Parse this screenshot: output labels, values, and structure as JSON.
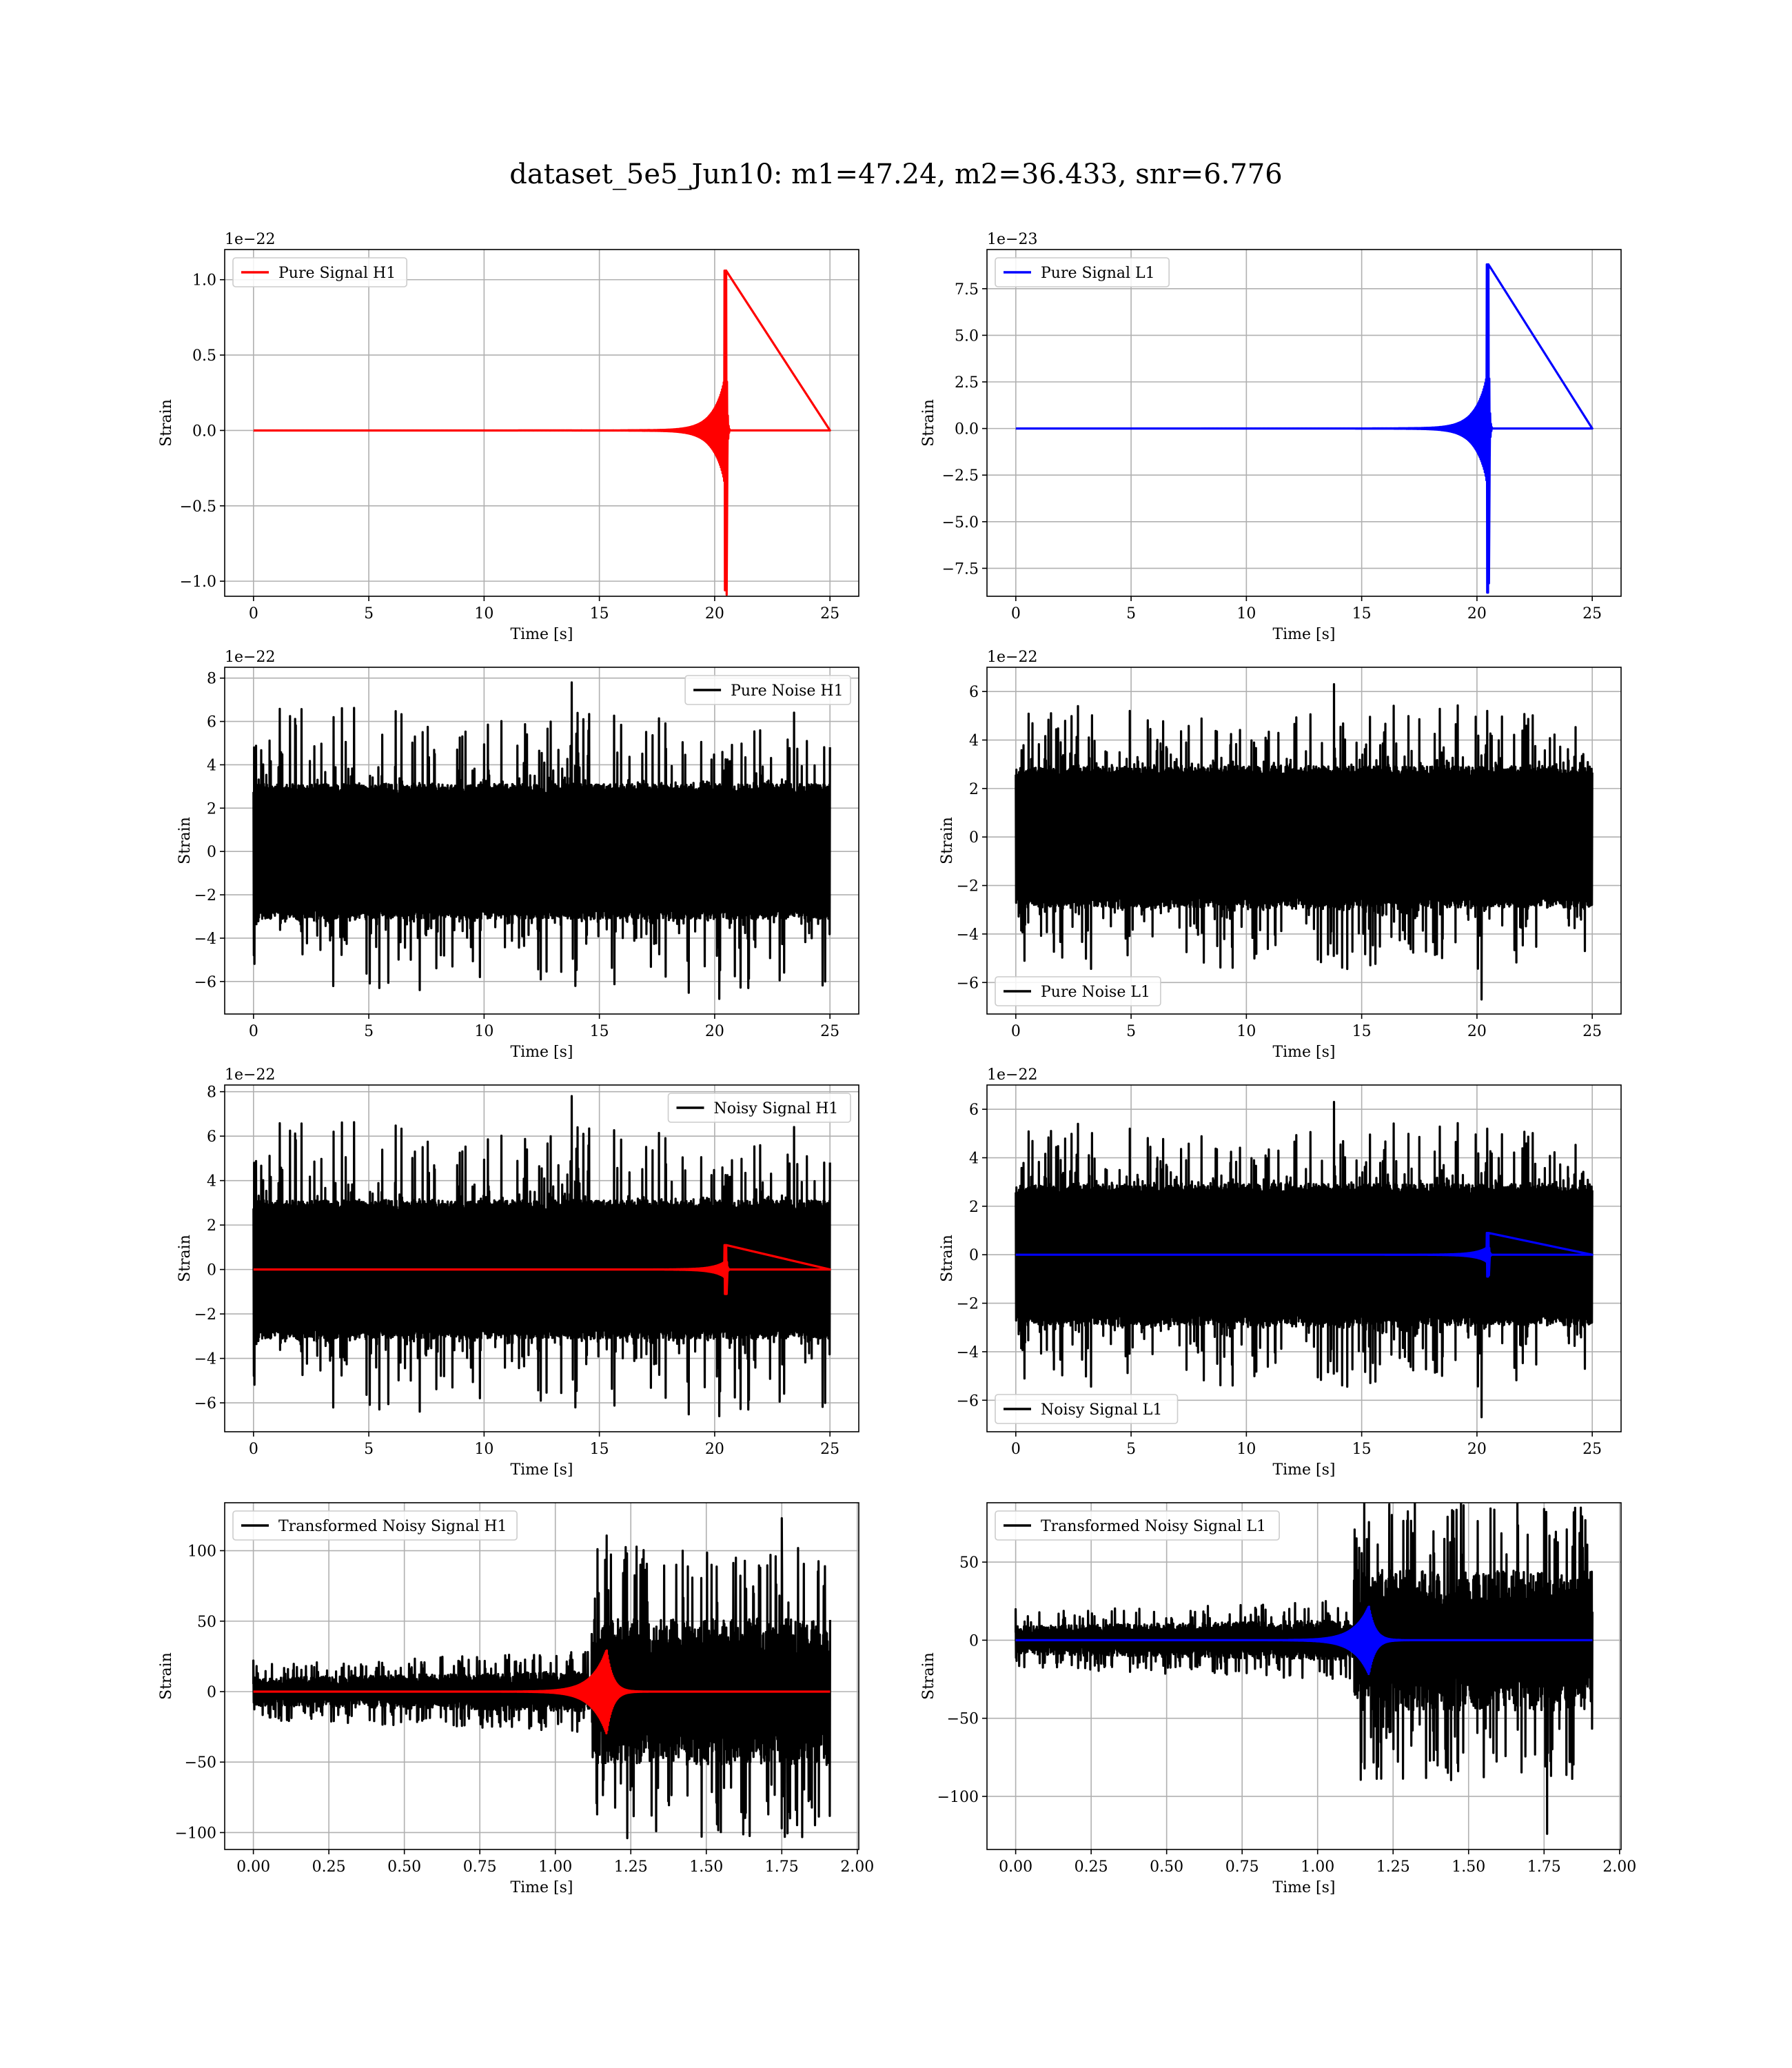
{
  "figure": {
    "title": "dataset_5e5_Jun10: m1=47.24, m2=36.433, snr=6.776"
  },
  "colors": {
    "h1": "#ff0000",
    "l1": "#0000ff",
    "noise": "#000000",
    "grid": "#b0b0b0"
  },
  "chart_data": [
    {
      "id": "pure-signal-h1",
      "type": "line",
      "xlabel": "Time [s]",
      "ylabel": "Strain",
      "offset_text": "1e−22",
      "xlim": [
        -1.25,
        26.25
      ],
      "ylim": [
        -1.1,
        1.2
      ],
      "xticks": [
        0,
        5,
        10,
        15,
        20,
        25
      ],
      "xtick_labels": [
        "0",
        "5",
        "10",
        "15",
        "20",
        "25"
      ],
      "yticks": [
        -1.0,
        -0.5,
        0.0,
        0.5,
        1.0
      ],
      "ytick_labels": [
        "−1.0",
        "−0.5",
        "0.0",
        "0.5",
        "1.0"
      ],
      "legend": {
        "loc": "upper-left",
        "label": "Pure Signal H1",
        "color": "#ff0000"
      },
      "series": [
        {
          "name": "Pure Signal H1",
          "kind": "chirp",
          "color": "#ff0000",
          "x_start": 0,
          "x_end": 25,
          "merger": 20.5,
          "peak_pos": 1.06,
          "peak_neg": -1.09,
          "base_amp": 0.35
        }
      ]
    },
    {
      "id": "pure-signal-l1",
      "type": "line",
      "xlabel": "Time [s]",
      "ylabel": "Strain",
      "offset_text": "1e−23",
      "xlim": [
        -1.25,
        26.25
      ],
      "ylim": [
        -9.0,
        9.6
      ],
      "xticks": [
        0,
        5,
        10,
        15,
        20,
        25
      ],
      "xtick_labels": [
        "0",
        "5",
        "10",
        "15",
        "20",
        "25"
      ],
      "yticks": [
        -7.5,
        -5.0,
        -2.5,
        0.0,
        2.5,
        5.0,
        7.5
      ],
      "ytick_labels": [
        "−7.5",
        "−5.0",
        "−2.5",
        "0.0",
        "2.5",
        "5.0",
        "7.5"
      ],
      "legend": {
        "loc": "upper-left",
        "label": "Pure Signal L1",
        "color": "#0000ff"
      },
      "series": [
        {
          "name": "Pure Signal L1",
          "kind": "chirp",
          "color": "#0000ff",
          "x_start": 0,
          "x_end": 25,
          "merger": 20.5,
          "peak_pos": 8.8,
          "peak_neg": -8.3,
          "base_amp": 2.9
        }
      ]
    },
    {
      "id": "pure-noise-h1",
      "type": "line",
      "xlabel": "Time [s]",
      "ylabel": "Strain",
      "offset_text": "1e−22",
      "xlim": [
        -1.25,
        26.25
      ],
      "ylim": [
        -7.5,
        8.5
      ],
      "xticks": [
        0,
        5,
        10,
        15,
        20,
        25
      ],
      "xtick_labels": [
        "0",
        "5",
        "10",
        "15",
        "20",
        "25"
      ],
      "yticks": [
        -6,
        -4,
        -2,
        0,
        2,
        4,
        6,
        8
      ],
      "ytick_labels": [
        "−6",
        "−4",
        "−2",
        "0",
        "2",
        "4",
        "6",
        "8"
      ],
      "legend": {
        "loc": "upper-right",
        "label": "Pure Noise H1",
        "color": "#000000"
      },
      "series": [
        {
          "name": "Pure Noise H1",
          "kind": "noise",
          "color": "#000000",
          "x_start": 0,
          "x_end": 25,
          "core": 3.1,
          "max": 7.8,
          "min": -6.8,
          "seed": 11
        }
      ]
    },
    {
      "id": "pure-noise-l1",
      "type": "line",
      "xlabel": "Time [s]",
      "ylabel": "Strain",
      "offset_text": "1e−22",
      "xlim": [
        -1.25,
        26.25
      ],
      "ylim": [
        -7.3,
        7.0
      ],
      "xticks": [
        0,
        5,
        10,
        15,
        20,
        25
      ],
      "xtick_labels": [
        "0",
        "5",
        "10",
        "15",
        "20",
        "25"
      ],
      "yticks": [
        -6,
        -4,
        -2,
        0,
        2,
        4,
        6
      ],
      "ytick_labels": [
        "−6",
        "−4",
        "−2",
        "0",
        "2",
        "4",
        "6"
      ],
      "legend": {
        "loc": "lower-left",
        "label": "Pure Noise L1",
        "color": "#000000"
      },
      "series": [
        {
          "name": "Pure Noise L1",
          "kind": "noise",
          "color": "#000000",
          "x_start": 0,
          "x_end": 25,
          "core": 2.9,
          "max": 6.3,
          "min": -6.7,
          "seed": 23
        }
      ]
    },
    {
      "id": "noisy-signal-h1",
      "type": "line",
      "xlabel": "Time [s]",
      "ylabel": "Strain",
      "offset_text": "1e−22",
      "xlim": [
        -1.25,
        26.25
      ],
      "ylim": [
        -7.3,
        8.3
      ],
      "xticks": [
        0,
        5,
        10,
        15,
        20,
        25
      ],
      "xtick_labels": [
        "0",
        "5",
        "10",
        "15",
        "20",
        "25"
      ],
      "yticks": [
        -6,
        -4,
        -2,
        0,
        2,
        4,
        6,
        8
      ],
      "ytick_labels": [
        "−6",
        "−4",
        "−2",
        "0",
        "2",
        "4",
        "6",
        "8"
      ],
      "legend": {
        "loc": "upper-right",
        "label": "Noisy Signal H1",
        "color": "#000000"
      },
      "series": [
        {
          "name": "Noisy Signal H1",
          "kind": "noise",
          "color": "#000000",
          "x_start": 0,
          "x_end": 25,
          "core": 3.1,
          "max": 7.8,
          "min": -6.6,
          "seed": 11
        },
        {
          "name": "",
          "kind": "chirp",
          "color": "#ff0000",
          "x_start": 0,
          "x_end": 25,
          "merger": 20.5,
          "peak_pos": 1.1,
          "peak_neg": -1.1,
          "base_amp": 0.35
        }
      ]
    },
    {
      "id": "noisy-signal-l1",
      "type": "line",
      "xlabel": "Time [s]",
      "ylabel": "Strain",
      "offset_text": "1e−22",
      "xlim": [
        -1.25,
        26.25
      ],
      "ylim": [
        -7.3,
        7.0
      ],
      "xticks": [
        0,
        5,
        10,
        15,
        20,
        25
      ],
      "xtick_labels": [
        "0",
        "5",
        "10",
        "15",
        "20",
        "25"
      ],
      "yticks": [
        -6,
        -4,
        -2,
        0,
        2,
        4,
        6
      ],
      "ytick_labels": [
        "−6",
        "−4",
        "−2",
        "0",
        "2",
        "4",
        "6"
      ],
      "legend": {
        "loc": "lower-left",
        "label": "Noisy Signal L1",
        "color": "#000000"
      },
      "series": [
        {
          "name": "Noisy Signal L1",
          "kind": "noise",
          "color": "#000000",
          "x_start": 0,
          "x_end": 25,
          "core": 2.9,
          "max": 6.3,
          "min": -6.7,
          "seed": 23
        },
        {
          "name": "",
          "kind": "chirp",
          "color": "#0000ff",
          "x_start": 0,
          "x_end": 25,
          "merger": 20.5,
          "peak_pos": 0.9,
          "peak_neg": -0.85,
          "base_amp": 0.3
        }
      ]
    },
    {
      "id": "transformed-h1",
      "type": "line",
      "xlabel": "Time [s]",
      "ylabel": "Strain",
      "offset_text": "",
      "xlim": [
        -0.095,
        2.005
      ],
      "ylim": [
        -112,
        134
      ],
      "xticks": [
        0,
        0.25,
        0.5,
        0.75,
        1.0,
        1.25,
        1.5,
        1.75,
        2.0
      ],
      "xtick_labels": [
        "0.00",
        "0.25",
        "0.50",
        "0.75",
        "1.00",
        "1.25",
        "1.50",
        "1.75",
        "2.00"
      ],
      "yticks": [
        -100,
        -50,
        0,
        50,
        100
      ],
      "ytick_labels": [
        "−100",
        "−50",
        "0",
        "50",
        "100"
      ],
      "legend": {
        "loc": "upper-left",
        "label": "Transformed Noisy Signal H1",
        "color": "#000000"
      },
      "series": [
        {
          "name": "Transformed Noisy Signal H1",
          "kind": "whitened",
          "color": "#000000",
          "x_start": 0,
          "x_end": 1.91,
          "jump": 1.12,
          "core_lo": 10,
          "core_hi": 52,
          "max": 123,
          "min": -103,
          "seed": 7
        },
        {
          "name": "",
          "kind": "whitened-chirp",
          "color": "#ff0000",
          "x_start": 0,
          "x_end": 1.91,
          "merger": 1.17,
          "peak": 30
        }
      ]
    },
    {
      "id": "transformed-l1",
      "type": "line",
      "xlabel": "Time [s]",
      "ylabel": "Strain",
      "offset_text": "",
      "xlim": [
        -0.095,
        2.005
      ],
      "ylim": [
        -134,
        88
      ],
      "xticks": [
        0,
        0.25,
        0.5,
        0.75,
        1.0,
        1.25,
        1.5,
        1.75,
        2.0
      ],
      "xtick_labels": [
        "0.00",
        "0.25",
        "0.50",
        "0.75",
        "1.00",
        "1.25",
        "1.50",
        "1.75",
        "2.00"
      ],
      "yticks": [
        -100,
        -50,
        0,
        50
      ],
      "ytick_labels": [
        "−100",
        "−50",
        "0",
        "50"
      ],
      "legend": {
        "loc": "upper-left",
        "label": "Transformed Noisy Signal L1",
        "color": "#000000"
      },
      "series": [
        {
          "name": "Transformed Noisy Signal L1",
          "kind": "whitened",
          "color": "#000000",
          "x_start": 0,
          "x_end": 1.91,
          "jump": 1.12,
          "core_lo": 9,
          "core_hi": 45,
          "max": 84,
          "min": -124,
          "seed": 13
        },
        {
          "name": "",
          "kind": "whitened-chirp",
          "color": "#0000ff",
          "x_start": 0,
          "x_end": 1.91,
          "merger": 1.17,
          "peak": 22
        }
      ]
    }
  ]
}
